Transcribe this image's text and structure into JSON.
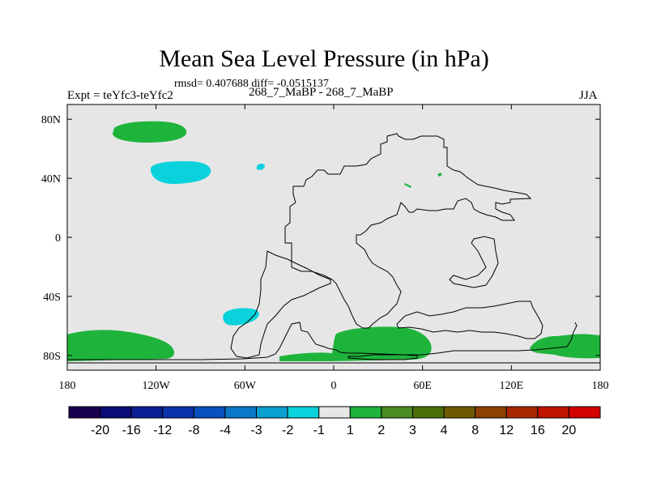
{
  "chart_data": {
    "type": "heatmap",
    "title": "Mean Sea Level Pressure (in hPa)",
    "stats_text": "rmsd= 0.407688 diff= -0.0515137",
    "left_label": "Expt = teYfc3-teYfc2",
    "center_label": "268_7_MaBP - 268_7_MaBP",
    "right_label": "JJA",
    "x_ticks": [
      "180",
      "120W",
      "60W",
      "0",
      "60E",
      "120E",
      "180"
    ],
    "x_tick_values": [
      -180,
      -120,
      -60,
      0,
      60,
      120,
      180
    ],
    "y_ticks": [
      "80N",
      "40N",
      "0",
      "40S",
      "80S"
    ],
    "y_tick_values": [
      80,
      40,
      0,
      -40,
      -80
    ],
    "xlim": [
      -180,
      180
    ],
    "ylim": [
      -90,
      90
    ],
    "colorbar": {
      "labels": [
        "-20",
        "-16",
        "-12",
        "-8",
        "-4",
        "-3",
        "-2",
        "-1",
        "1",
        "2",
        "3",
        "4",
        "8",
        "12",
        "16",
        "20"
      ],
      "colors": [
        "#1a0050",
        "#0a0a78",
        "#0a1e96",
        "#0a32aa",
        "#0a50be",
        "#0a78c8",
        "#0aa0d2",
        "#0ad2dc",
        "#e6e6e6",
        "#1eb43c",
        "#4b8c23",
        "#4b6e0a",
        "#6e5a00",
        "#8c4100",
        "#aa2800",
        "#be1400",
        "#d20000"
      ]
    },
    "background_color": "#e6e6e6",
    "positive_color": "#1eb43c",
    "negative_color": "#0ad2dc",
    "regions": [
      {
        "name": "arctic-positive-anomaly",
        "value": 1.5,
        "color": "#1eb43c"
      },
      {
        "name": "north-pacific-negative-anomaly",
        "value": -1.5,
        "color": "#0ad2dc"
      },
      {
        "name": "south-pacific-negative-anomaly",
        "value": -1.5,
        "color": "#0ad2dc"
      },
      {
        "name": "antarctic-positive-west",
        "value": 1.5,
        "color": "#1eb43c"
      },
      {
        "name": "antarctic-positive-center",
        "value": 1.5,
        "color": "#1eb43c"
      },
      {
        "name": "antarctic-positive-east",
        "value": 1.5,
        "color": "#1eb43c"
      }
    ]
  }
}
